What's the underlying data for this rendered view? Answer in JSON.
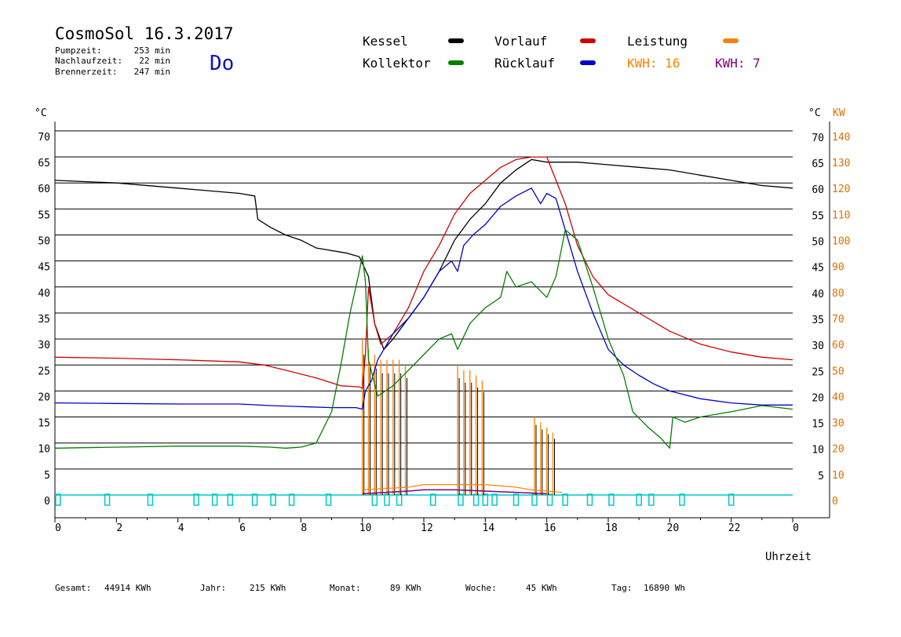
{
  "header": {
    "title": "CosmoSol 16.3.2017",
    "day": "Do",
    "stats": [
      {
        "label": "Pumpzeit:",
        "value": "253 min"
      },
      {
        "label": "Nachlaufzeit:",
        "value": "22 min"
      },
      {
        "label": "Brennerzeit:",
        "value": "247 min"
      }
    ]
  },
  "legend": {
    "kessel": "Kessel",
    "kollektor": "Kollektor",
    "vorlauf": "Vorlauf",
    "ruecklauf": "Rücklauf",
    "leistung": "Leistung",
    "kwh1": "KWH: 16",
    "kwh2": "KWH: 7"
  },
  "axes": {
    "y_left_unit": "°C",
    "y_right_unit": "°C",
    "y_right2_unit": "KW",
    "x_label": "Uhrzeit"
  },
  "footer": {
    "gesamt_label": "Gesamt:",
    "gesamt_value": "44914 KWh",
    "jahr_label": "Jahr:",
    "jahr_value": "215 KWh",
    "monat_label": "Monat:",
    "monat_value": "89 KWh",
    "woche_label": "Woche:",
    "woche_value": "45 KWh",
    "tag_label": "Tag:",
    "tag_value": "16890 Wh"
  },
  "colors": {
    "kessel": "#000000",
    "kollektor": "#008000",
    "vorlauf": "#d00000",
    "ruecklauf": "#0000c8",
    "leistung": "#ff8000",
    "kwh2": "#800080",
    "pump": "#00c8c8",
    "day": "#1010c0"
  },
  "chart_data": {
    "type": "line",
    "x_ticks": [
      "0",
      "2",
      "4",
      "6",
      "8",
      "10",
      "12",
      "14",
      "16",
      "18",
      "20",
      "22",
      "0"
    ],
    "y_left_ticks": [
      "0",
      "5",
      "10",
      "15",
      "20",
      "25",
      "30",
      "35",
      "40",
      "45",
      "50",
      "55",
      "60",
      "65",
      "70"
    ],
    "y_right_ticks": [
      "5",
      "10",
      "15",
      "20",
      "25",
      "30",
      "35",
      "40",
      "45",
      "50",
      "55",
      "60",
      "65",
      "70"
    ],
    "y_right2_ticks": [
      "0",
      "10",
      "20",
      "30",
      "40",
      "50",
      "60",
      "70",
      "80",
      "90",
      "100",
      "110",
      "120",
      "130",
      "140"
    ],
    "xlim": [
      0,
      24
    ],
    "ylim": [
      0,
      75
    ],
    "series": [
      {
        "name": "Kessel",
        "key": "kessel",
        "points": [
          [
            0,
            60.5
          ],
          [
            2,
            60
          ],
          [
            4,
            59
          ],
          [
            6,
            58
          ],
          [
            6.5,
            57.5
          ],
          [
            6.6,
            53
          ],
          [
            7,
            51.5
          ],
          [
            7.5,
            50
          ],
          [
            8,
            49
          ],
          [
            8.5,
            47.5
          ],
          [
            9.5,
            46.5
          ],
          [
            9.9,
            45.8
          ],
          [
            10.2,
            42
          ],
          [
            10.4,
            33
          ],
          [
            10.7,
            28
          ],
          [
            11,
            30
          ],
          [
            11.5,
            34
          ],
          [
            12,
            38
          ],
          [
            12.5,
            43
          ],
          [
            13,
            49
          ],
          [
            13.5,
            53
          ],
          [
            14,
            56
          ],
          [
            14.5,
            60
          ],
          [
            15,
            62.5
          ],
          [
            15.5,
            64.5
          ],
          [
            16,
            64
          ],
          [
            16.5,
            64
          ],
          [
            17,
            64
          ],
          [
            18,
            63.5
          ],
          [
            19,
            63
          ],
          [
            20,
            62.5
          ],
          [
            21,
            61.5
          ],
          [
            22,
            60.5
          ],
          [
            23,
            59.5
          ],
          [
            24,
            59
          ]
        ]
      },
      {
        "name": "Vorlauf",
        "key": "vorlauf",
        "points": [
          [
            0,
            26.5
          ],
          [
            2,
            26.3
          ],
          [
            4,
            26
          ],
          [
            6,
            25.6
          ],
          [
            6.8,
            25
          ],
          [
            7.5,
            24
          ],
          [
            8.5,
            22.5
          ],
          [
            9.3,
            21
          ],
          [
            9.9,
            20.8
          ],
          [
            10,
            20.5
          ],
          [
            10.1,
            27
          ],
          [
            10.2,
            40
          ],
          [
            10.4,
            33
          ],
          [
            10.6,
            29
          ],
          [
            11,
            31
          ],
          [
            11.5,
            36
          ],
          [
            12,
            43
          ],
          [
            12.5,
            48
          ],
          [
            13,
            54
          ],
          [
            13.5,
            58
          ],
          [
            14,
            60.5
          ],
          [
            14.5,
            63
          ],
          [
            15,
            64.5
          ],
          [
            15.5,
            65
          ],
          [
            16,
            65
          ],
          [
            16.2,
            62
          ],
          [
            16.6,
            56
          ],
          [
            17,
            48
          ],
          [
            17.5,
            42
          ],
          [
            18,
            38.5
          ],
          [
            19,
            35
          ],
          [
            20,
            31.5
          ],
          [
            21,
            29
          ],
          [
            22,
            27.5
          ],
          [
            23,
            26.5
          ],
          [
            24,
            26
          ]
        ]
      },
      {
        "name": "Rücklauf",
        "key": "ruecklauf",
        "points": [
          [
            0,
            17.7
          ],
          [
            2,
            17.6
          ],
          [
            4,
            17.5
          ],
          [
            6,
            17.5
          ],
          [
            7,
            17.2
          ],
          [
            8,
            17
          ],
          [
            9,
            16.8
          ],
          [
            9.8,
            16.8
          ],
          [
            10,
            16.5
          ],
          [
            10.1,
            20
          ],
          [
            10.3,
            22
          ],
          [
            10.5,
            26
          ],
          [
            10.8,
            29
          ],
          [
            11,
            31
          ],
          [
            11.5,
            34
          ],
          [
            12,
            38
          ],
          [
            12.5,
            43
          ],
          [
            12.9,
            45
          ],
          [
            13.1,
            43
          ],
          [
            13.3,
            48
          ],
          [
            13.6,
            50
          ],
          [
            14,
            52
          ],
          [
            14.5,
            55.5
          ],
          [
            15,
            57.5
          ],
          [
            15.5,
            59
          ],
          [
            15.8,
            56
          ],
          [
            16,
            58
          ],
          [
            16.3,
            57
          ],
          [
            16.7,
            49
          ],
          [
            17,
            43
          ],
          [
            17.5,
            35
          ],
          [
            18,
            28
          ],
          [
            18.5,
            25
          ],
          [
            19,
            23
          ],
          [
            19.5,
            21.3
          ],
          [
            20,
            20
          ],
          [
            21,
            18.5
          ],
          [
            22,
            17.7
          ],
          [
            23,
            17.3
          ],
          [
            24,
            17.3
          ]
        ]
      },
      {
        "name": "Kollektor",
        "key": "kollektor",
        "points": [
          [
            0,
            9
          ],
          [
            2,
            9.2
          ],
          [
            4,
            9.4
          ],
          [
            6,
            9.4
          ],
          [
            7,
            9.2
          ],
          [
            7.5,
            9
          ],
          [
            8,
            9.2
          ],
          [
            8.5,
            10
          ],
          [
            9,
            16
          ],
          [
            9.3,
            25
          ],
          [
            9.6,
            35
          ],
          [
            9.9,
            43
          ],
          [
            10,
            46
          ],
          [
            10.1,
            41
          ],
          [
            10.2,
            26
          ],
          [
            10.5,
            19
          ],
          [
            11,
            21
          ],
          [
            11.5,
            24
          ],
          [
            12,
            27
          ],
          [
            12.5,
            30
          ],
          [
            12.9,
            31
          ],
          [
            13.1,
            28
          ],
          [
            13.5,
            33
          ],
          [
            14,
            36
          ],
          [
            14.5,
            38
          ],
          [
            14.7,
            43
          ],
          [
            15,
            40
          ],
          [
            15.5,
            41
          ],
          [
            16,
            38
          ],
          [
            16.3,
            42
          ],
          [
            16.6,
            51
          ],
          [
            17,
            49
          ],
          [
            17.5,
            40
          ],
          [
            18,
            30
          ],
          [
            18.5,
            23
          ],
          [
            18.8,
            16
          ],
          [
            19.3,
            13
          ],
          [
            19.7,
            11
          ],
          [
            20,
            9
          ],
          [
            20.1,
            15
          ],
          [
            20.5,
            14
          ],
          [
            21,
            15
          ],
          [
            22,
            16
          ],
          [
            23,
            17.2
          ],
          [
            24,
            16.5
          ]
        ]
      }
    ],
    "leistung_peaks": [
      [
        10,
        60
      ],
      [
        10.2,
        56
      ],
      [
        10.4,
        54
      ],
      [
        10.6,
        52
      ],
      [
        10.8,
        52
      ],
      [
        11,
        52
      ],
      [
        11.2,
        52
      ],
      [
        11.4,
        50
      ],
      [
        13.1,
        50
      ],
      [
        13.3,
        48
      ],
      [
        13.5,
        48
      ],
      [
        13.7,
        46
      ],
      [
        13.9,
        44
      ],
      [
        15.6,
        30
      ],
      [
        15.8,
        28
      ],
      [
        16,
        26
      ],
      [
        16.2,
        24
      ]
    ],
    "pump_marks": [
      0.1,
      1.7,
      3.1,
      4.6,
      5.2,
      5.7,
      6.5,
      7.1,
      7.7,
      8.9,
      10.4,
      10.8,
      11.2,
      12.3,
      13.2,
      13.7,
      14,
      14.3,
      15,
      15.6,
      16.1,
      16.6,
      17.4,
      18.1,
      19,
      19.4,
      20.4,
      22
    ]
  }
}
